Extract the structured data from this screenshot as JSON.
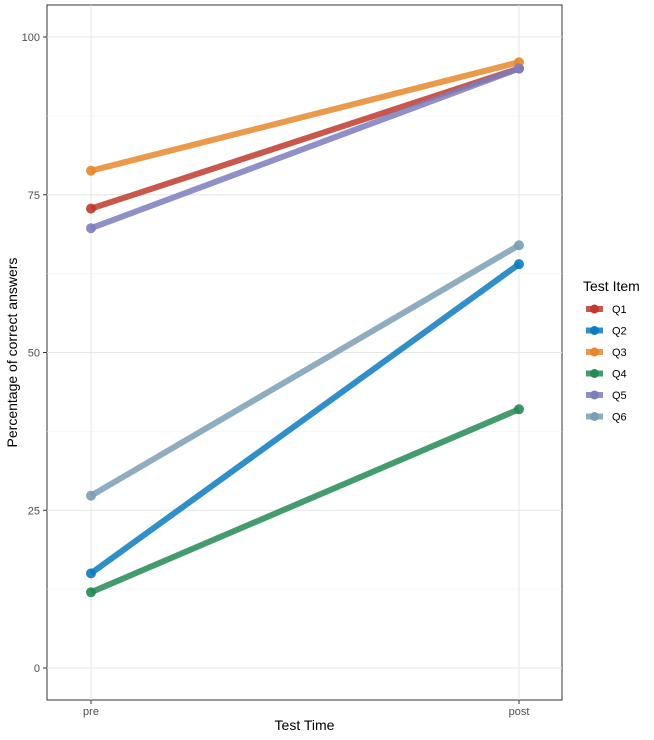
{
  "chart_data": {
    "type": "line",
    "title": "",
    "xlabel": "Test Time",
    "ylabel": "Percentage of correct answers",
    "categories": [
      "pre",
      "post"
    ],
    "ylim": [
      -5,
      105
    ],
    "yticks": [
      0,
      25,
      50,
      75,
      100
    ],
    "ytick_labels": [
      "0",
      "25",
      "50",
      "75",
      "100"
    ],
    "grid": true,
    "legend": {
      "title": "Test Item",
      "placement": "right"
    },
    "series": [
      {
        "name": "Q1",
        "values": [
          72.8,
          95
        ],
        "color": "#C0392B"
      },
      {
        "name": "Q2",
        "values": [
          15,
          64
        ],
        "color": "#0C7BC0"
      },
      {
        "name": "Q3",
        "values": [
          78.8,
          96
        ],
        "color": "#E8872A"
      },
      {
        "name": "Q4",
        "values": [
          12,
          41
        ],
        "color": "#238B55"
      },
      {
        "name": "Q5",
        "values": [
          69.7,
          95
        ],
        "color": "#7D7DBF"
      },
      {
        "name": "Q6",
        "values": [
          27.3,
          67
        ],
        "color": "#7A9FB5"
      }
    ]
  }
}
